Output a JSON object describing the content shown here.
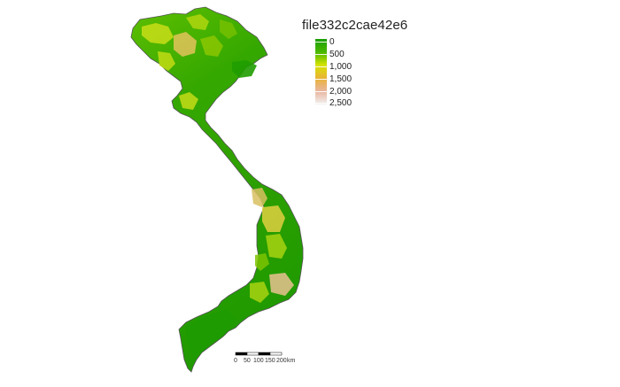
{
  "legend": {
    "title": "file332c2cae42e6",
    "labels": [
      "0",
      "500",
      "1,000",
      "1,500",
      "2,000",
      "2,500"
    ],
    "colors": [
      "#1a9e00",
      "#4ab800",
      "#d6e300",
      "#e9b338",
      "#e9b6a0",
      "#f2f2f2"
    ]
  },
  "scale_bar": {
    "labels": [
      "0",
      "50",
      "100",
      "150",
      "200",
      "km"
    ]
  },
  "map": {
    "fill_low": "#2ea800",
    "fill_mid": "#8ccf00",
    "fill_high": "#e8c08a",
    "border_color": "#555555"
  }
}
